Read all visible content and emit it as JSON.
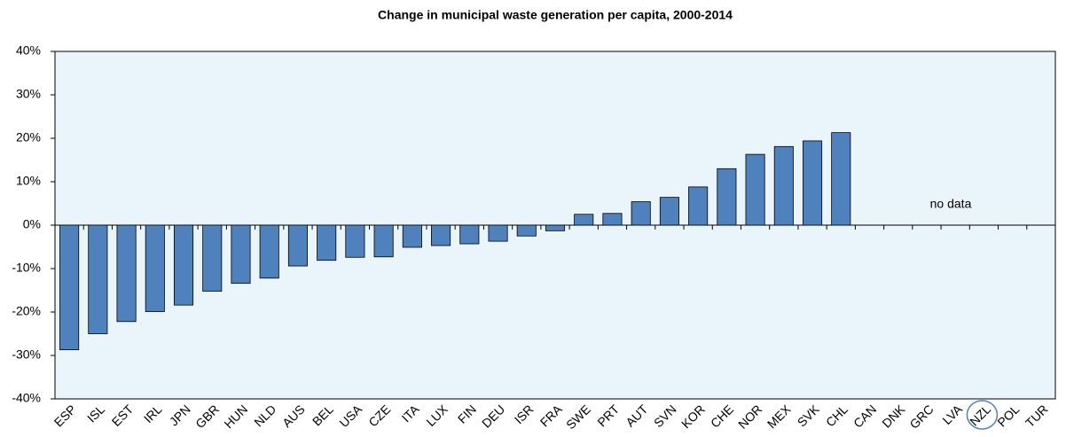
{
  "chart_data": {
    "type": "bar",
    "title": "Change in municipal waste generation per capita, 2000-2014",
    "categories": [
      "ESP",
      "ISL",
      "EST",
      "IRL",
      "JPN",
      "GBR",
      "HUN",
      "NLD",
      "AUS",
      "BEL",
      "USA",
      "CZE",
      "ITA",
      "LUX",
      "FIN",
      "DEU",
      "ISR",
      "FRA",
      "SWE",
      "PRT",
      "AUT",
      "SVN",
      "KOR",
      "CHE",
      "NOR",
      "MEX",
      "SVK",
      "CHL",
      "CAN",
      "DNK",
      "GRC",
      "LVA",
      "NZL",
      "POL",
      "TUR"
    ],
    "values": [
      -28.7,
      -25.0,
      -22.2,
      -19.9,
      -18.4,
      -15.2,
      -13.4,
      -12.2,
      -9.4,
      -8.1,
      -7.4,
      -7.3,
      -5.1,
      -4.7,
      -4.3,
      -3.7,
      -2.5,
      -1.3,
      2.5,
      2.7,
      5.4,
      6.4,
      8.8,
      13.0,
      16.3,
      18.1,
      19.4,
      21.3,
      null,
      null,
      null,
      null,
      null,
      null,
      null
    ],
    "color": "#4f81bd",
    "ylim": [
      -40,
      40
    ],
    "yticks": [
      {
        "value": -40,
        "label": "-40%"
      },
      {
        "value": -30,
        "label": "-30%"
      },
      {
        "value": -20,
        "label": "-20%"
      },
      {
        "value": -10,
        "label": "-10%"
      },
      {
        "value": 0,
        "label": "0%"
      },
      {
        "value": 10,
        "label": "10%"
      },
      {
        "value": 20,
        "label": "20%"
      },
      {
        "value": 30,
        "label": "30%"
      },
      {
        "value": 40,
        "label": "40%"
      }
    ],
    "grid": false,
    "annotation": "no data"
  }
}
